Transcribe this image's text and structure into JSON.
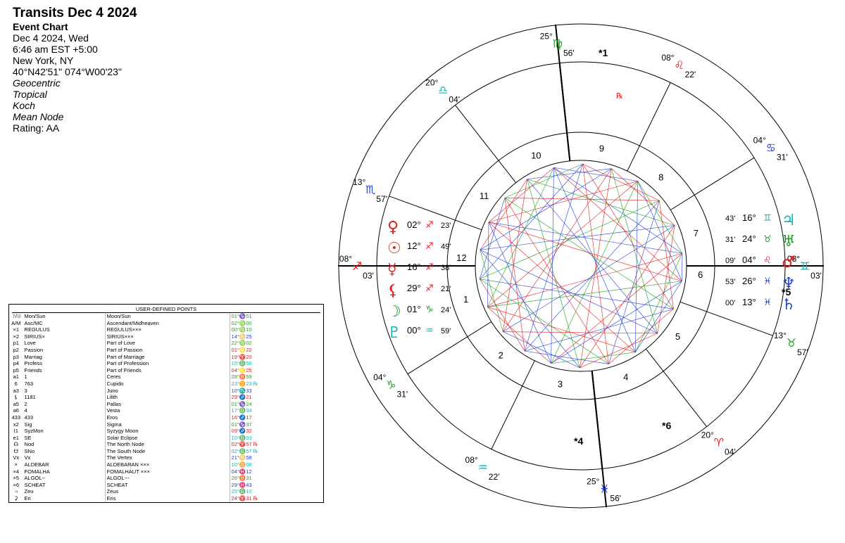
{
  "header": {
    "title": "Transits Dec 4 2024",
    "chart_type": "Event Chart",
    "date": "Dec 4 2024, Wed",
    "time": "6:46 am  EST +5:00",
    "place": "New York, NY",
    "coords": "40°N42'51\" 074°W00'23\"",
    "zodiac_opts": [
      "Geocentric",
      "Tropical",
      "Koch",
      "Mean Node"
    ],
    "rating": "Rating: AA"
  },
  "udp_table": {
    "title": "USER-DEFINED POINTS",
    "rows": [
      {
        "sym": "☽/☉",
        "name": "Mon/Sun",
        "desc": "Moon/Sun",
        "pos": "01°♑51",
        "color": "#1aa31a"
      },
      {
        "sym": "A/M",
        "name": "Asc/MC",
        "desc": "Ascendant/Midheaven",
        "pos": "02°♍00",
        "color": "#1aa31a"
      },
      {
        "sym": "×1",
        "name": "REGULUS",
        "desc": "REGULUS×××",
        "pos": "00°♍10",
        "color": "#1aa31a"
      },
      {
        "sym": "×2",
        "name": "SIRIUS×",
        "desc": "SIRIUS×××",
        "pos": "14°♋25",
        "color": "#1f3fd6"
      },
      {
        "sym": "p1",
        "name": "Love",
        "desc": "Part of Love",
        "pos": "22°♍02",
        "color": "#1aa31a"
      },
      {
        "sym": "p2",
        "name": "Passion",
        "desc": "Part of Passion",
        "pos": "01°♌22",
        "color": "#e01b1b"
      },
      {
        "sym": "p3",
        "name": "Marriag",
        "desc": "Part of Marriage",
        "pos": "19°♈20",
        "color": "#e01b1b"
      },
      {
        "sym": "p4",
        "name": "Profess",
        "desc": "Part of Profession",
        "pos": "15°♎56",
        "color": "#13b3b3"
      },
      {
        "sym": "p5",
        "name": "Friends",
        "desc": "Part of Friends",
        "pos": "04°♌25",
        "color": "#e01b1b"
      },
      {
        "sym": "a1",
        "name": "1",
        "desc": "Ceres",
        "pos": "28°♉59",
        "color": "#1aa31a"
      },
      {
        "sym": "6",
        "name": "763",
        "desc": "Cupido",
        "pos": "23°♊23 ℞",
        "color": "#13b3b3"
      },
      {
        "sym": "a3",
        "name": "3",
        "desc": "Juno",
        "pos": "10°♏33",
        "color": "#1f3fd6"
      },
      {
        "sym": "⚸",
        "name": "1181",
        "desc": "Lilith",
        "pos": "29°♐21",
        "color": "#e01b1b"
      },
      {
        "sym": "a5",
        "name": "2",
        "desc": "Pallas",
        "pos": "01°♑24",
        "color": "#1aa31a"
      },
      {
        "sym": "a6",
        "name": "4",
        "desc": "Vesta",
        "pos": "17°♎34",
        "color": "#13b3b3"
      },
      {
        "sym": "433",
        "name": "433",
        "desc": "Eros",
        "pos": "16°♐17",
        "color": "#e01b1b"
      },
      {
        "sym": "x2",
        "name": "Sig",
        "desc": "Sigma",
        "pos": "01°♑37",
        "color": "#1aa31a"
      },
      {
        "sym": "I1",
        "name": "SyzMon",
        "desc": "Syzygy Moon",
        "pos": "09°♐32",
        "color": "#e01b1b"
      },
      {
        "sym": "e1",
        "name": "SE",
        "desc": "Solar Eclipse",
        "pos": "10°♎03",
        "color": "#13b3b3"
      },
      {
        "sym": "☊",
        "name": "Nod",
        "desc": "The North Node",
        "pos": "02°♈57 ℞",
        "color": "#e01b1b"
      },
      {
        "sym": "☋",
        "name": "SNo",
        "desc": "The South Node",
        "pos": "02°♎57 ℞",
        "color": "#13b3b3"
      },
      {
        "sym": "Vx",
        "name": "Vx",
        "desc": "The Vertex",
        "pos": "21°♋58",
        "color": "#1f3fd6"
      },
      {
        "sym": "×",
        "name": "ALDEBAR",
        "desc": "ALDEBARAN ×××",
        "pos": "10°♊08",
        "color": "#13b3b3"
      },
      {
        "sym": "×4",
        "name": "FOMALHA",
        "desc": "FOMALHAUT ×××",
        "pos": "04°♓12",
        "color": "#1f3fd6"
      },
      {
        "sym": "×5",
        "name": "ALGOL--",
        "desc": "ALGOL---",
        "pos": "26°♉31",
        "color": "#1aa31a"
      },
      {
        "sym": "×6",
        "name": "SCHEAT",
        "desc": "SCHEAT",
        "pos": "29°♓43",
        "color": "#1f3fd6"
      },
      {
        "sym": "♃",
        "name": "Zeu",
        "desc": "Zeus",
        "pos": "25°♎10",
        "color": "#13b3b3"
      },
      {
        "sym": "⚳",
        "name": "Eri",
        "desc": "Eris",
        "pos": "24°♈31 ℞",
        "color": "#e01b1b"
      }
    ]
  },
  "wheel": {
    "colors": {
      "fire": "#e01b1b",
      "earth": "#1aa31a",
      "air": "#13b3b3",
      "water": "#1f3fd6",
      "ink": "#000000"
    },
    "houses": [
      "1",
      "2",
      "3",
      "4",
      "5",
      "6",
      "7",
      "8",
      "9",
      "10",
      "11",
      "12"
    ],
    "cusps": [
      {
        "deg": "25°",
        "sign": "♍",
        "min": "56'",
        "color": "#1aa31a"
      },
      {
        "deg": "08°",
        "sign": "♌",
        "min": "22'",
        "color": "#e01b1b"
      },
      {
        "deg": "04°",
        "sign": "♋",
        "min": "31'",
        "color": "#1f3fd6"
      },
      {
        "deg": "08°",
        "sign": "♊",
        "min": "03'",
        "color": "#13b3b3"
      },
      {
        "deg": "13°",
        "sign": "♉",
        "min": "57'",
        "color": "#1aa31a"
      },
      {
        "deg": "20°",
        "sign": "♈",
        "min": "04'",
        "color": "#e01b1b"
      },
      {
        "deg": "25°",
        "sign": "♓",
        "min": "56'",
        "color": "#1f3fd6"
      },
      {
        "deg": "08°",
        "sign": "♒",
        "min": "22'",
        "color": "#13b3b3"
      },
      {
        "deg": "04°",
        "sign": "♑",
        "min": "31'",
        "color": "#1aa31a"
      },
      {
        "deg": "08°",
        "sign": "♐",
        "min": "03'",
        "color": "#e01b1b"
      },
      {
        "deg": "13°",
        "sign": "♏",
        "min": "57'",
        "color": "#1f3fd6"
      },
      {
        "deg": "20°",
        "sign": "♎",
        "min": "04'",
        "color": "#13b3b3"
      }
    ],
    "planets_left": [
      {
        "glyph": "♀",
        "deg": "02°",
        "sign": "♐",
        "min": "23'",
        "color": "#e01b1b"
      },
      {
        "glyph": "☉",
        "deg": "12°",
        "sign": "♐",
        "min": "49'",
        "color": "#e01b1b"
      },
      {
        "glyph": "☿",
        "deg": "16°",
        "sign": "♐",
        "min": "38'",
        "color": "#e01b1b"
      },
      {
        "glyph": "⚸",
        "deg": "29°",
        "sign": "♐",
        "min": "21'",
        "color": "#e01b1b"
      },
      {
        "glyph": "☽",
        "deg": "01°",
        "sign": "♑",
        "min": "24'",
        "color": "#1aa31a"
      },
      {
        "glyph": "♇",
        "deg": "00°",
        "sign": "♒",
        "min": "59'",
        "color": "#13b3b3"
      }
    ],
    "planets_right": [
      {
        "glyph": "♃",
        "deg": "16°",
        "sign": "♊",
        "min": "43'",
        "color": "#13b3b3"
      },
      {
        "glyph": "♅",
        "deg": "24°",
        "sign": "♉",
        "min": "31'",
        "color": "#1aa31a"
      },
      {
        "glyph": "♂",
        "deg": "04°",
        "sign": "♌",
        "min": "09'",
        "color": "#e01b1b"
      },
      {
        "glyph": "♆",
        "deg": "26°",
        "sign": "♓",
        "min": "53'",
        "color": "#1f3fd6"
      },
      {
        "glyph": "♄",
        "deg": "13°",
        "sign": "♓",
        "min": "00'",
        "color": "#1f3fd6"
      }
    ],
    "star_labels": [
      "*1",
      "*4",
      "*5",
      "*6"
    ],
    "retro": "℞"
  }
}
